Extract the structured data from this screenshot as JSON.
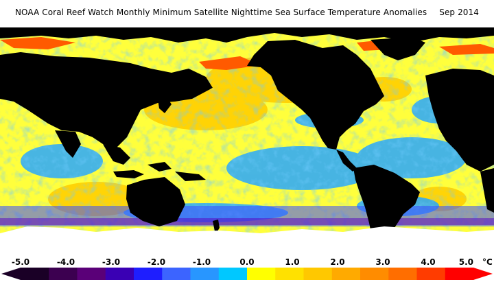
{
  "header": {
    "title": "NOAA Coral Reef Watch Monthly Minimum Satellite Nighttime Sea Surface Temperature Anomalies",
    "date": "Sep 2014"
  },
  "legend": {
    "unit": "°C",
    "min": -5.0,
    "max": 5.0,
    "ticks": [
      "-5.0",
      "-4.0",
      "-3.0",
      "-2.0",
      "-1.0",
      "0.0",
      "1.0",
      "2.0",
      "3.0",
      "4.0",
      "5.0"
    ],
    "colors": [
      "#1a0026",
      "#3c0050",
      "#5a0078",
      "#3a00b4",
      "#1e1eff",
      "#3c64ff",
      "#2896ff",
      "#00c8ff",
      "#ffff00",
      "#ffe100",
      "#ffc800",
      "#ffaa00",
      "#ff8c00",
      "#ff6e00",
      "#ff3c00",
      "#ff0000"
    ]
  },
  "map": {
    "colors": {
      "ocean_base": "#ffff3c",
      "ocean_warm": "#ffcf00",
      "ocean_cool": "#28a8ff",
      "ocean_cold": "#3c4cff",
      "land": "#000000",
      "sea_ice": "#ffffff",
      "anomaly_hot": "#ff5a00"
    }
  }
}
